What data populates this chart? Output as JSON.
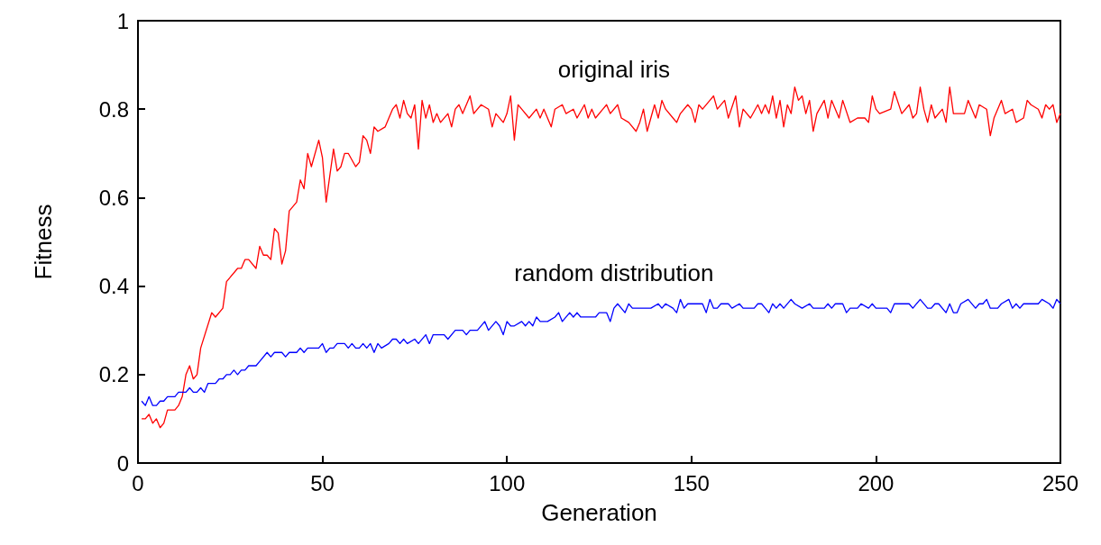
{
  "chart_data": {
    "type": "line",
    "xlabel": "Generation",
    "ylabel": "Fitness",
    "xlim": [
      0,
      250
    ],
    "xticks": [
      0,
      50,
      100,
      150,
      200,
      250
    ],
    "ylim": [
      0,
      1
    ],
    "yticks": [
      0,
      0.2,
      0.4,
      0.6,
      0.8,
      1
    ],
    "grid": false,
    "legend": false,
    "marker": "none",
    "line_style": "solid",
    "series": [
      {
        "name": "original iris",
        "color": "#ff0000",
        "x": [
          1,
          2,
          3,
          4,
          5,
          6,
          7,
          8,
          10,
          11,
          12,
          13,
          14,
          15,
          16,
          17,
          20,
          21,
          23,
          24,
          27,
          28,
          29,
          30,
          32,
          33,
          34,
          35,
          36,
          37,
          38,
          39,
          40,
          41,
          43,
          44,
          45,
          46,
          47,
          49,
          50,
          51,
          53,
          54,
          55,
          56,
          57,
          59,
          60,
          61,
          62,
          63,
          64,
          65,
          67,
          69,
          70,
          71,
          72,
          73,
          74,
          75,
          76,
          77,
          78,
          79,
          80,
          81,
          82,
          84,
          85,
          86,
          87,
          88,
          90,
          91,
          93,
          95,
          96,
          97,
          99,
          100,
          101,
          102,
          103,
          104,
          106,
          108,
          109,
          110,
          112,
          113,
          115,
          116,
          118,
          119,
          121,
          122,
          123,
          124,
          126,
          127,
          128,
          130,
          131,
          133,
          135,
          136,
          137,
          138,
          139,
          140,
          141,
          142,
          143,
          145,
          146,
          147,
          149,
          150,
          151,
          152,
          153,
          155,
          156,
          157,
          159,
          160,
          162,
          163,
          164,
          166,
          168,
          169,
          170,
          171,
          172,
          173,
          174,
          175,
          176,
          177,
          178,
          179,
          180,
          181,
          182,
          183,
          184,
          186,
          187,
          188,
          190,
          191,
          193,
          195,
          197,
          198,
          199,
          200,
          201,
          204,
          205,
          207,
          209,
          210,
          211,
          212,
          213,
          214,
          215,
          216,
          218,
          219,
          220,
          221,
          223,
          224,
          225,
          227,
          228,
          230,
          231,
          232,
          234,
          235,
          237,
          238,
          240,
          241,
          242,
          244,
          245,
          246,
          247,
          248,
          249,
          250
        ],
        "values": [
          0.1,
          0.1,
          0.11,
          0.09,
          0.1,
          0.08,
          0.09,
          0.12,
          0.12,
          0.13,
          0.15,
          0.2,
          0.22,
          0.19,
          0.2,
          0.26,
          0.34,
          0.33,
          0.35,
          0.41,
          0.44,
          0.44,
          0.46,
          0.46,
          0.44,
          0.49,
          0.47,
          0.47,
          0.46,
          0.53,
          0.52,
          0.45,
          0.48,
          0.57,
          0.59,
          0.64,
          0.62,
          0.7,
          0.67,
          0.73,
          0.69,
          0.59,
          0.71,
          0.66,
          0.67,
          0.7,
          0.7,
          0.67,
          0.68,
          0.74,
          0.73,
          0.7,
          0.76,
          0.75,
          0.76,
          0.8,
          0.81,
          0.78,
          0.82,
          0.79,
          0.78,
          0.81,
          0.71,
          0.82,
          0.78,
          0.81,
          0.77,
          0.79,
          0.77,
          0.79,
          0.76,
          0.8,
          0.81,
          0.79,
          0.83,
          0.79,
          0.81,
          0.8,
          0.76,
          0.79,
          0.77,
          0.79,
          0.83,
          0.73,
          0.81,
          0.8,
          0.78,
          0.8,
          0.78,
          0.8,
          0.76,
          0.8,
          0.81,
          0.79,
          0.8,
          0.78,
          0.81,
          0.78,
          0.8,
          0.78,
          0.8,
          0.81,
          0.79,
          0.81,
          0.78,
          0.77,
          0.75,
          0.77,
          0.8,
          0.75,
          0.78,
          0.81,
          0.78,
          0.82,
          0.8,
          0.78,
          0.77,
          0.79,
          0.81,
          0.8,
          0.77,
          0.81,
          0.8,
          0.82,
          0.83,
          0.8,
          0.82,
          0.78,
          0.83,
          0.76,
          0.8,
          0.78,
          0.81,
          0.79,
          0.81,
          0.79,
          0.83,
          0.78,
          0.82,
          0.76,
          0.81,
          0.79,
          0.85,
          0.82,
          0.83,
          0.79,
          0.82,
          0.75,
          0.79,
          0.82,
          0.78,
          0.82,
          0.78,
          0.82,
          0.77,
          0.78,
          0.78,
          0.77,
          0.83,
          0.8,
          0.79,
          0.8,
          0.84,
          0.79,
          0.81,
          0.78,
          0.79,
          0.85,
          0.8,
          0.77,
          0.81,
          0.78,
          0.8,
          0.77,
          0.85,
          0.79,
          0.79,
          0.79,
          0.82,
          0.78,
          0.81,
          0.8,
          0.74,
          0.78,
          0.82,
          0.79,
          0.8,
          0.77,
          0.78,
          0.82,
          0.81,
          0.8,
          0.78,
          0.81,
          0.8,
          0.81,
          0.77,
          0.79
        ]
      },
      {
        "name": "random distribution",
        "color": "#0000ff",
        "x": [
          1,
          2,
          3,
          4,
          5,
          6,
          7,
          8,
          10,
          11,
          13,
          14,
          15,
          16,
          17,
          18,
          19,
          21,
          22,
          23,
          24,
          25,
          26,
          27,
          28,
          29,
          30,
          32,
          33,
          35,
          36,
          37,
          39,
          40,
          41,
          43,
          44,
          45,
          46,
          49,
          50,
          51,
          52,
          53,
          54,
          56,
          57,
          58,
          59,
          60,
          61,
          62,
          63,
          64,
          65,
          66,
          68,
          69,
          70,
          71,
          72,
          73,
          75,
          76,
          78,
          79,
          80,
          83,
          84,
          86,
          88,
          89,
          90,
          92,
          94,
          95,
          97,
          98,
          99,
          100,
          101,
          102,
          104,
          105,
          106,
          107,
          108,
          109,
          111,
          113,
          114,
          115,
          117,
          118,
          119,
          120,
          124,
          125,
          127,
          128,
          129,
          130,
          131,
          132,
          133,
          134,
          139,
          141,
          142,
          143,
          145,
          146,
          147,
          148,
          149,
          153,
          154,
          155,
          156,
          157,
          158,
          160,
          161,
          163,
          164,
          167,
          168,
          169,
          170,
          171,
          172,
          173,
          174,
          175,
          177,
          178,
          180,
          182,
          183,
          186,
          187,
          188,
          189,
          191,
          192,
          193,
          195,
          196,
          198,
          199,
          200,
          203,
          204,
          205,
          209,
          210,
          212,
          214,
          215,
          216,
          217,
          219,
          220,
          221,
          222,
          223,
          225,
          227,
          228,
          229,
          230,
          231,
          233,
          234,
          236,
          237,
          238,
          239,
          240,
          244,
          245,
          247,
          248,
          249,
          250
        ],
        "values": [
          0.14,
          0.13,
          0.15,
          0.13,
          0.13,
          0.14,
          0.14,
          0.15,
          0.15,
          0.16,
          0.16,
          0.17,
          0.16,
          0.16,
          0.17,
          0.16,
          0.18,
          0.18,
          0.19,
          0.19,
          0.2,
          0.2,
          0.21,
          0.2,
          0.21,
          0.21,
          0.22,
          0.22,
          0.23,
          0.25,
          0.24,
          0.25,
          0.25,
          0.24,
          0.25,
          0.25,
          0.26,
          0.25,
          0.26,
          0.26,
          0.27,
          0.25,
          0.26,
          0.26,
          0.27,
          0.27,
          0.26,
          0.27,
          0.26,
          0.26,
          0.27,
          0.26,
          0.27,
          0.25,
          0.27,
          0.26,
          0.27,
          0.28,
          0.28,
          0.27,
          0.28,
          0.27,
          0.28,
          0.27,
          0.29,
          0.27,
          0.29,
          0.29,
          0.28,
          0.3,
          0.3,
          0.29,
          0.3,
          0.3,
          0.32,
          0.3,
          0.32,
          0.31,
          0.29,
          0.32,
          0.31,
          0.31,
          0.32,
          0.31,
          0.32,
          0.31,
          0.33,
          0.32,
          0.32,
          0.33,
          0.34,
          0.32,
          0.34,
          0.33,
          0.34,
          0.33,
          0.33,
          0.34,
          0.34,
          0.32,
          0.35,
          0.36,
          0.35,
          0.34,
          0.36,
          0.35,
          0.35,
          0.36,
          0.35,
          0.36,
          0.35,
          0.34,
          0.37,
          0.35,
          0.36,
          0.36,
          0.34,
          0.37,
          0.35,
          0.35,
          0.36,
          0.36,
          0.35,
          0.36,
          0.35,
          0.35,
          0.36,
          0.36,
          0.35,
          0.34,
          0.36,
          0.35,
          0.36,
          0.35,
          0.37,
          0.36,
          0.35,
          0.36,
          0.35,
          0.35,
          0.36,
          0.35,
          0.36,
          0.36,
          0.34,
          0.35,
          0.35,
          0.36,
          0.35,
          0.36,
          0.35,
          0.35,
          0.34,
          0.36,
          0.36,
          0.35,
          0.37,
          0.35,
          0.35,
          0.36,
          0.36,
          0.34,
          0.36,
          0.34,
          0.34,
          0.36,
          0.37,
          0.35,
          0.36,
          0.36,
          0.37,
          0.35,
          0.35,
          0.36,
          0.37,
          0.35,
          0.36,
          0.35,
          0.36,
          0.36,
          0.37,
          0.36,
          0.35,
          0.37,
          0.36
        ]
      }
    ]
  }
}
